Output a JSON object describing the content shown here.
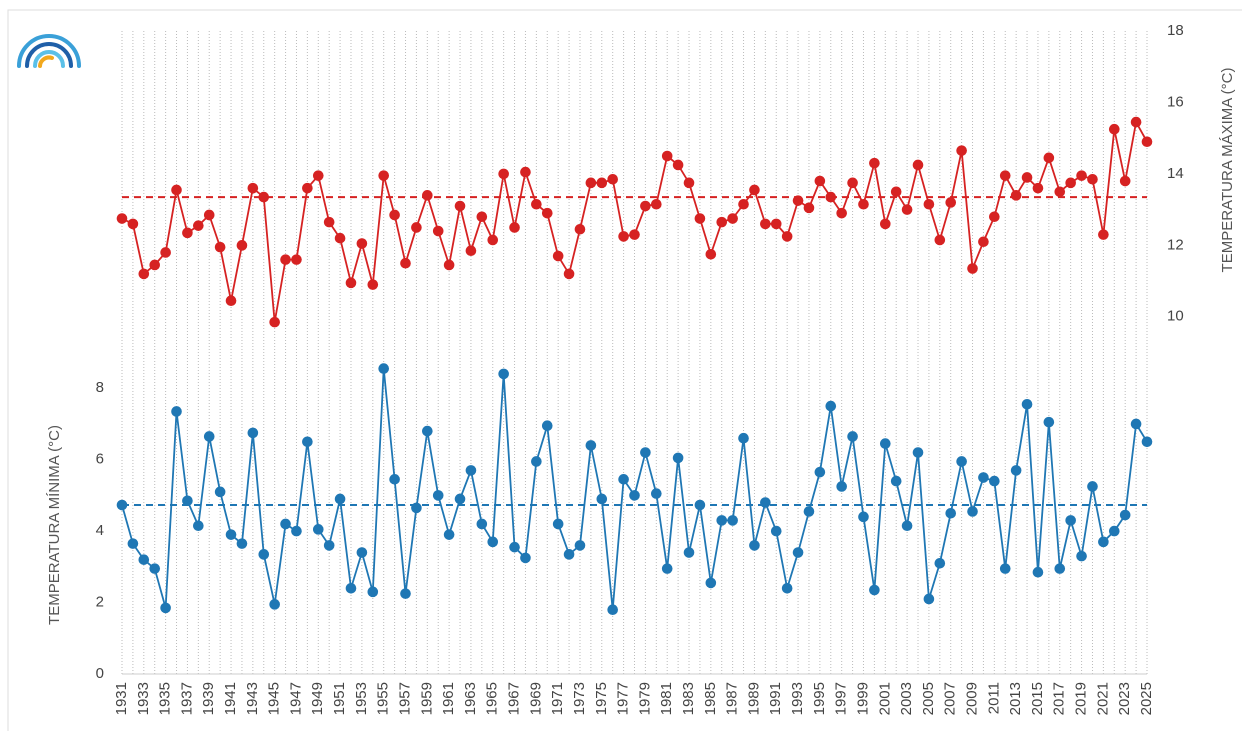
{
  "chart_data": {
    "type": "line",
    "y_label": "TEMPERATURA MÍNIMA (°C)",
    "y2_label": "TEMPERATURA MÁXIMA (°C)",
    "x": [
      1931,
      1932,
      1933,
      1934,
      1935,
      1936,
      1937,
      1938,
      1939,
      1940,
      1941,
      1942,
      1943,
      1944,
      1945,
      1946,
      1947,
      1948,
      1949,
      1950,
      1951,
      1952,
      1953,
      1954,
      1955,
      1956,
      1957,
      1958,
      1959,
      1960,
      1961,
      1962,
      1963,
      1964,
      1965,
      1966,
      1967,
      1968,
      1969,
      1970,
      1971,
      1972,
      1973,
      1974,
      1975,
      1976,
      1977,
      1978,
      1979,
      1980,
      1981,
      1982,
      1983,
      1984,
      1985,
      1986,
      1987,
      1988,
      1989,
      1990,
      1991,
      1992,
      1993,
      1994,
      1995,
      1996,
      1997,
      1998,
      1999,
      2000,
      2001,
      2002,
      2003,
      2004,
      2005,
      2006,
      2007,
      2008,
      2009,
      2010,
      2011,
      2012,
      2013,
      2014,
      2015,
      2016,
      2017,
      2018,
      2019,
      2020,
      2021,
      2022,
      2023,
      2024,
      2025
    ],
    "xlim": [
      1931,
      2025
    ],
    "xticks": [
      1931,
      1933,
      1935,
      1937,
      1939,
      1941,
      1943,
      1945,
      1947,
      1949,
      1951,
      1953,
      1955,
      1957,
      1959,
      1961,
      1963,
      1965,
      1967,
      1969,
      1971,
      1973,
      1975,
      1977,
      1979,
      1981,
      1983,
      1985,
      1987,
      1989,
      1991,
      1993,
      1995,
      1997,
      1999,
      2001,
      2003,
      2005,
      2007,
      2009,
      2011,
      2013,
      2015,
      2017,
      2019,
      2021,
      2023,
      2025
    ],
    "ylim": [
      0,
      18
    ],
    "yticks": [
      0,
      2,
      4,
      6,
      8
    ],
    "y2lim": [
      0,
      18
    ],
    "y2ticks": [
      10,
      12,
      14,
      16,
      18
    ],
    "grid": "x",
    "series": [
      {
        "color": "#d62222",
        "axis": "y2",
        "values": [
          12.75,
          12.6,
          11.2,
          11.45,
          11.8,
          13.55,
          12.35,
          12.55,
          12.85,
          11.95,
          10.45,
          12.0,
          13.6,
          13.35,
          9.85,
          11.6,
          11.6,
          13.6,
          13.95,
          12.65,
          12.2,
          10.95,
          12.05,
          10.9,
          13.95,
          12.85,
          11.5,
          12.5,
          13.4,
          12.4,
          11.45,
          13.1,
          11.85,
          12.8,
          12.15,
          14.0,
          12.5,
          14.05,
          13.15,
          12.9,
          11.7,
          11.2,
          12.45,
          13.75,
          13.75,
          13.85,
          12.25,
          12.3,
          13.1,
          13.15,
          14.5,
          14.25,
          13.75,
          12.75,
          11.75,
          12.65,
          12.75,
          13.15,
          13.55,
          12.6,
          12.6,
          12.25,
          13.25,
          13.05,
          13.8,
          13.35,
          12.9,
          13.75,
          13.15,
          14.3,
          12.6,
          13.5,
          13.0,
          14.25,
          13.15,
          12.15,
          13.2,
          14.65,
          11.35,
          12.1,
          12.8,
          13.95,
          13.4,
          13.9,
          13.6,
          14.45,
          13.5,
          13.75,
          13.95,
          13.85,
          12.3,
          15.25,
          13.8,
          15.45,
          14.9
        ]
      },
      {
        "color": "#1f77b4",
        "axis": "y",
        "values": [
          4.73,
          3.65,
          3.2,
          2.95,
          1.85,
          7.35,
          4.85,
          4.15,
          6.65,
          5.1,
          3.9,
          3.65,
          6.75,
          3.35,
          1.95,
          4.2,
          4.0,
          6.5,
          4.05,
          3.6,
          4.9,
          2.4,
          3.4,
          2.3,
          8.55,
          5.45,
          2.25,
          4.65,
          6.8,
          5.0,
          3.9,
          4.9,
          5.7,
          4.2,
          3.7,
          8.4,
          3.55,
          3.25,
          5.95,
          6.95,
          4.2,
          3.35,
          3.6,
          6.4,
          4.9,
          1.8,
          5.45,
          5.0,
          6.2,
          5.05,
          2.95,
          6.05,
          3.4,
          4.73,
          2.55,
          4.3,
          4.3,
          6.6,
          3.6,
          4.8,
          4.0,
          2.4,
          3.4,
          4.55,
          5.65,
          7.5,
          5.25,
          6.65,
          4.4,
          2.35,
          6.45,
          5.4,
          4.15,
          6.2,
          2.1,
          3.1,
          4.5,
          5.95,
          4.55,
          5.5,
          5.4,
          2.95,
          5.7,
          7.55,
          2.85,
          7.05,
          2.95,
          4.3,
          3.3,
          5.25,
          3.7,
          4.0,
          4.45,
          7.0,
          6.5
        ]
      }
    ],
    "reference_lines": [
      {
        "axis": "y2",
        "value": 13.35,
        "color": "#d62222"
      },
      {
        "axis": "y",
        "value": 4.73,
        "color": "#1f77b4"
      }
    ]
  }
}
